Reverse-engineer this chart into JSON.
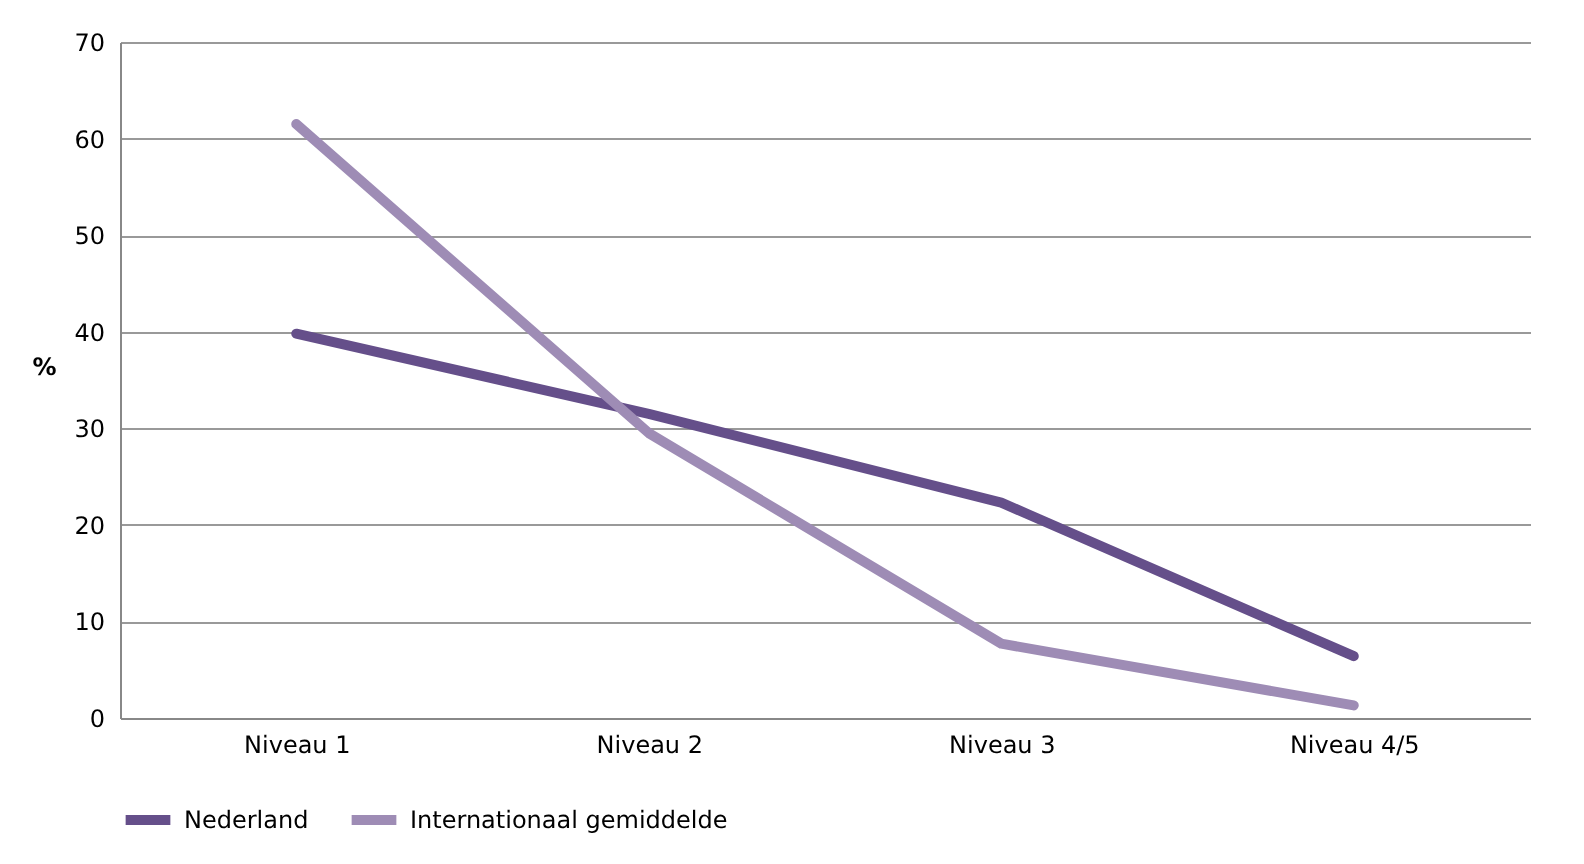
{
  "chart_data": {
    "type": "line",
    "ylabel": "%",
    "categories": [
      "Niveau 1",
      "Niveau 2",
      "Niveau 3",
      "Niveau 4/5"
    ],
    "series": [
      {
        "name": "Nederland",
        "color": "#654f8a",
        "values": [
          39.8,
          31.5,
          22.3,
          6.4
        ]
      },
      {
        "name": "Internationaal gemiddelde",
        "color": "#9e8cb5",
        "values": [
          61.5,
          29.5,
          7.7,
          1.3
        ]
      }
    ],
    "ylim": [
      0,
      70
    ],
    "yticks": [
      0,
      10,
      20,
      30,
      40,
      50,
      60,
      70
    ],
    "grid": "y",
    "legend": "bottom",
    "marker": "none",
    "line_style": "solid"
  }
}
